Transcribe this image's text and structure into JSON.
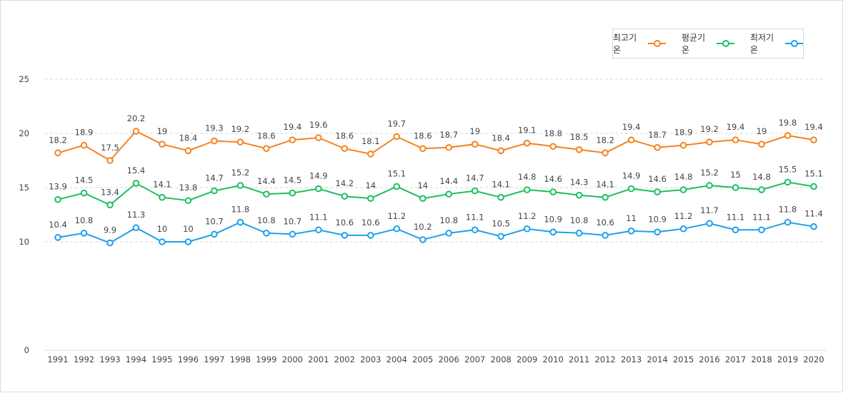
{
  "chart_data": {
    "type": "line",
    "title": "",
    "xlabel": "",
    "ylabel": "",
    "ylim": [
      0,
      25
    ],
    "yticks": [
      0,
      10,
      15,
      20,
      25
    ],
    "grid": true,
    "legend_position": "top-right",
    "x": [
      "1991",
      "1992",
      "1993",
      "1994",
      "1995",
      "1996",
      "1997",
      "1998",
      "1999",
      "2000",
      "2001",
      "2002",
      "2003",
      "2004",
      "2005",
      "2006",
      "2007",
      "2008",
      "2009",
      "2010",
      "2011",
      "2012",
      "2013",
      "2014",
      "2015",
      "2016",
      "2017",
      "2018",
      "2019",
      "2020"
    ],
    "series": [
      {
        "name": "최고기온",
        "color": "#f58220",
        "values": [
          18.2,
          18.9,
          17.5,
          20.2,
          19,
          18.4,
          19.3,
          19.2,
          18.6,
          19.4,
          19.6,
          18.6,
          18.1,
          19.7,
          18.6,
          18.7,
          19,
          18.4,
          19.1,
          18.8,
          18.5,
          18.2,
          19.4,
          18.7,
          18.9,
          19.2,
          19.4,
          19,
          19.8,
          19.4
        ]
      },
      {
        "name": "평균기온",
        "color": "#1fbf5f",
        "values": [
          13.9,
          14.5,
          13.4,
          15.4,
          14.1,
          13.8,
          14.7,
          15.2,
          14.4,
          14.5,
          14.9,
          14.2,
          14,
          15.1,
          14,
          14.4,
          14.7,
          14.1,
          14.8,
          14.6,
          14.3,
          14.1,
          14.9,
          14.6,
          14.8,
          15.2,
          15,
          14.8,
          15.5,
          15.1
        ]
      },
      {
        "name": "최저기온",
        "color": "#1ea0ea",
        "values": [
          10.4,
          10.8,
          9.9,
          11.3,
          10,
          10,
          10.7,
          11.8,
          10.8,
          10.7,
          11.1,
          10.6,
          10.6,
          11.2,
          10.2,
          10.8,
          11.1,
          10.5,
          11.2,
          10.9,
          10.8,
          10.6,
          11,
          10.9,
          11.2,
          11.7,
          11.1,
          11.1,
          11.8,
          11.4
        ]
      }
    ]
  }
}
